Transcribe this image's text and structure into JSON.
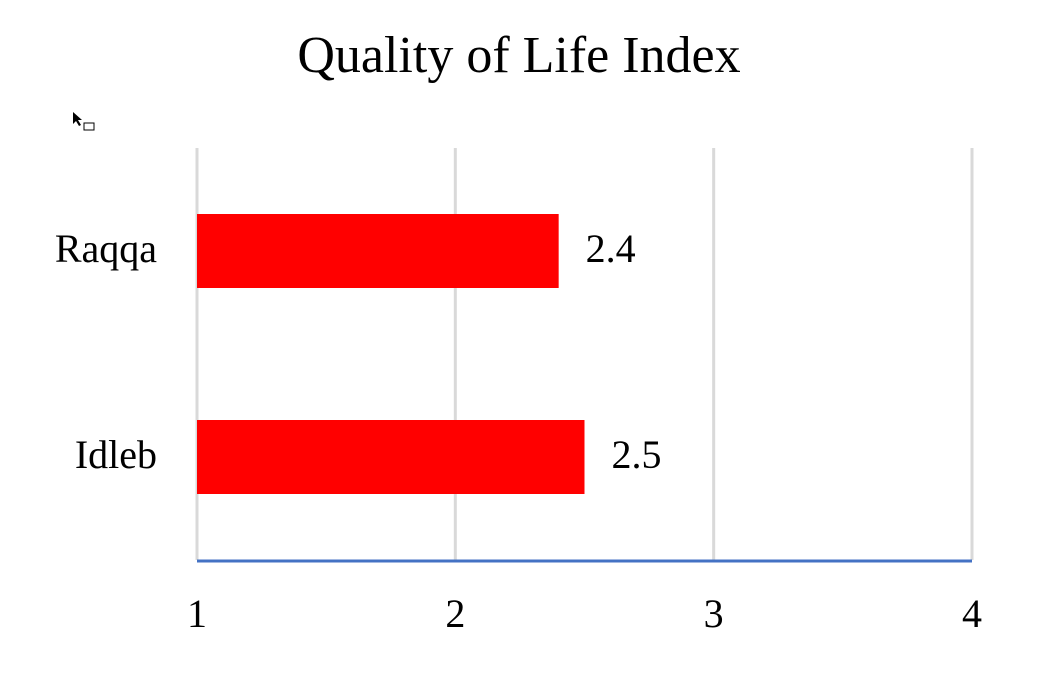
{
  "chart_data": {
    "type": "bar",
    "orientation": "horizontal",
    "title": "Quality of Life Index",
    "categories": [
      "Raqqa",
      "Idleb"
    ],
    "values": [
      2.4,
      2.5
    ],
    "color": "#ff0000",
    "xlim": [
      1,
      4
    ],
    "xticks": [
      1,
      2,
      3,
      4
    ],
    "grid": true
  }
}
